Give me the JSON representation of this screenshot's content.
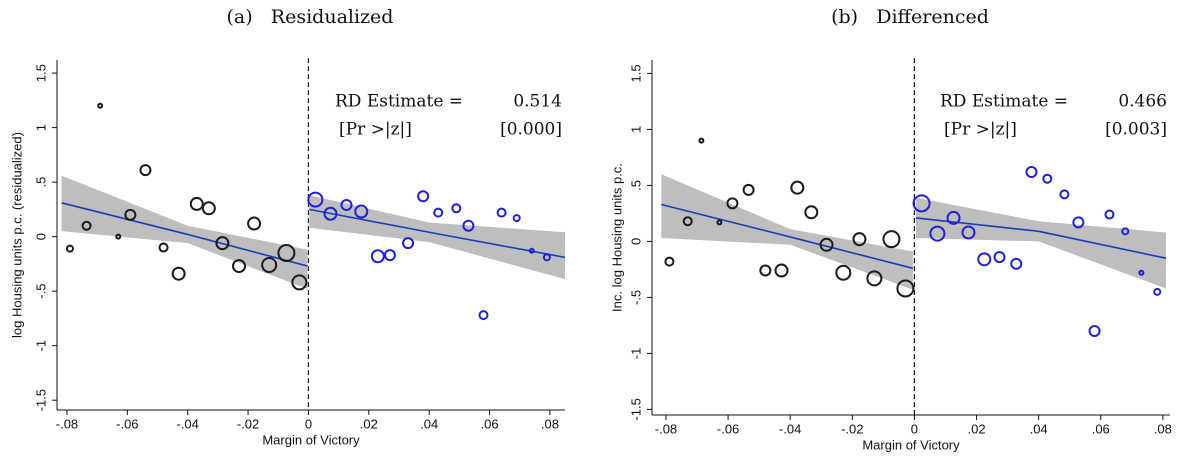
{
  "chart_data": [
    {
      "type": "scatter",
      "title": "(a)   Residualized",
      "xlabel": "Margin of Victory",
      "ylabel": "log Housing units p.c. (residualized)",
      "xlim": [
        -0.0833,
        0.085
      ],
      "ylim": [
        -1.59,
        1.62
      ],
      "xticks": [
        {
          "value": -0.08,
          "label": "-.08"
        },
        {
          "value": -0.06,
          "label": "-.06"
        },
        {
          "value": -0.04,
          "label": "-.04"
        },
        {
          "value": -0.02,
          "label": "-.02"
        },
        0,
        {
          "value": 0.02,
          "label": ".02"
        },
        {
          "value": 0.04,
          "label": ".04"
        },
        {
          "value": 0.06,
          "label": ".06"
        },
        {
          "value": 0.08,
          "label": ".08"
        }
      ],
      "yticks": [
        -1.5,
        -1,
        {
          "value": -0.5,
          "label": "-.5"
        },
        0,
        {
          "value": 0.5,
          "label": ".5"
        },
        1,
        1.5
      ],
      "cutoff": 0,
      "series": [
        {
          "color": "#1a1a1a",
          "x": [
            -0.079,
            -0.0735,
            -0.069,
            -0.063,
            -0.059,
            -0.054,
            -0.048,
            -0.043,
            -0.037,
            -0.033,
            -0.0285,
            -0.023,
            -0.018,
            -0.013,
            -0.0073,
            -0.003
          ],
          "values": [
            -0.11,
            0.1,
            1.2,
            0.0,
            0.2,
            0.61,
            -0.1,
            -0.34,
            0.3,
            0.26,
            -0.06,
            -0.27,
            0.12,
            -0.26,
            -0.15,
            -0.42
          ],
          "sizes": [
            3,
            4,
            2,
            2,
            5,
            5,
            4,
            6,
            6,
            6,
            6,
            6,
            6,
            7,
            8,
            7
          ]
        },
        {
          "color": "#1f1fe0",
          "x": [
            0.0023,
            0.0073,
            0.0126,
            0.0175,
            0.023,
            0.027,
            0.033,
            0.038,
            0.043,
            0.049,
            0.053,
            0.058,
            0.064,
            0.069,
            0.074,
            0.079
          ],
          "values": [
            0.34,
            0.21,
            0.29,
            0.23,
            -0.18,
            -0.17,
            -0.06,
            0.37,
            0.22,
            0.26,
            0.1,
            -0.72,
            0.22,
            0.17,
            -0.13,
            -0.19
          ],
          "sizes": [
            7,
            6,
            5,
            6,
            6,
            5,
            5,
            5,
            4,
            4,
            5,
            4,
            4,
            3,
            2,
            3
          ]
        }
      ],
      "fits": [
        {
          "x": [
            -0.0818,
            -0.04,
            -0.0003
          ],
          "y": [
            0.31,
            0.02,
            -0.27
          ],
          "lower": [
            0.05,
            -0.06,
            -0.48
          ],
          "upper": [
            0.56,
            0.1,
            -0.12
          ]
        },
        {
          "x": [
            0.0003,
            0.04,
            0.085
          ],
          "y": [
            0.25,
            0.04,
            -0.19
          ],
          "lower": [
            0.08,
            -0.05,
            -0.39
          ],
          "upper": [
            0.38,
            0.13,
            0.04
          ]
        }
      ],
      "fit_color": "#1a3fb5",
      "band_color": "#bebebe",
      "annotation": {
        "estimate_label": "RD Estimate =",
        "estimate": 0.514,
        "p_label": "[Pr >|z|]",
        "p_value": "[0.000]"
      }
    },
    {
      "type": "scatter",
      "title": "(b)   Differenced",
      "xlabel": "Margin of Victory",
      "ylabel": "Inc. log Housing units p.c.",
      "xlim": [
        -0.0845,
        0.0823
      ],
      "ylim": [
        -1.55,
        1.62
      ],
      "xticks": [
        {
          "value": -0.08,
          "label": "-.08"
        },
        {
          "value": -0.06,
          "label": "-.06"
        },
        {
          "value": -0.04,
          "label": "-.04"
        },
        {
          "value": -0.02,
          "label": "-.02"
        },
        0,
        {
          "value": 0.02,
          "label": ".02"
        },
        {
          "value": 0.04,
          "label": ".04"
        },
        {
          "value": 0.06,
          "label": ".06"
        },
        {
          "value": 0.08,
          "label": ".08"
        }
      ],
      "yticks": [
        -1.5,
        -1,
        {
          "value": -0.5,
          "label": "-.5"
        },
        0,
        {
          "value": 0.5,
          "label": ".5"
        },
        1,
        1.5
      ],
      "cutoff": 0,
      "series": [
        {
          "color": "#1a1a1a",
          "x": [
            -0.0789,
            -0.073,
            -0.0686,
            -0.0628,
            -0.0586,
            -0.0534,
            -0.048,
            -0.0428,
            -0.0377,
            -0.0332,
            -0.0283,
            -0.0229,
            -0.0177,
            -0.0129,
            -0.0074,
            -0.0029
          ],
          "values": [
            -0.18,
            0.18,
            0.9,
            0.17,
            0.34,
            0.46,
            -0.26,
            -0.26,
            0.48,
            0.26,
            -0.03,
            -0.28,
            0.02,
            -0.33,
            0.02,
            -0.42
          ],
          "sizes": [
            4,
            4,
            2,
            2,
            5,
            5,
            5,
            6,
            6,
            6,
            6,
            7,
            6,
            7,
            8,
            8
          ]
        },
        {
          "color": "#1f1fe0",
          "x": [
            0.0023,
            0.0074,
            0.0126,
            0.0174,
            0.0225,
            0.0274,
            0.0328,
            0.0377,
            0.0428,
            0.0483,
            0.0528,
            0.058,
            0.0628,
            0.0679,
            0.0731,
            0.0782
          ],
          "values": [
            0.34,
            0.07,
            0.21,
            0.08,
            -0.16,
            -0.14,
            -0.2,
            0.62,
            0.56,
            0.42,
            0.17,
            -0.8,
            0.24,
            0.09,
            -0.28,
            -0.45
          ],
          "sizes": [
            8,
            7,
            6,
            6,
            6,
            5,
            5,
            5,
            4,
            4,
            5,
            5,
            4,
            3,
            2,
            3
          ]
        }
      ],
      "fits": [
        {
          "x": [
            -0.0815,
            -0.04,
            -0.0005
          ],
          "y": [
            0.33,
            0.04,
            -0.24
          ],
          "lower": [
            0.03,
            -0.03,
            -0.43
          ],
          "upper": [
            0.6,
            0.11,
            -0.09
          ]
        },
        {
          "x": [
            0.0005,
            0.04,
            0.081
          ],
          "y": [
            0.21,
            0.09,
            -0.15
          ],
          "lower": [
            0.03,
            0.0,
            -0.42
          ],
          "upper": [
            0.39,
            0.18,
            0.08
          ]
        }
      ],
      "fit_color": "#1a3fb5",
      "band_color": "#bebebe",
      "annotation": {
        "estimate_label": "RD Estimate =",
        "estimate": 0.466,
        "p_label": "[Pr >|z|]",
        "p_value": "[0.003]"
      }
    }
  ]
}
